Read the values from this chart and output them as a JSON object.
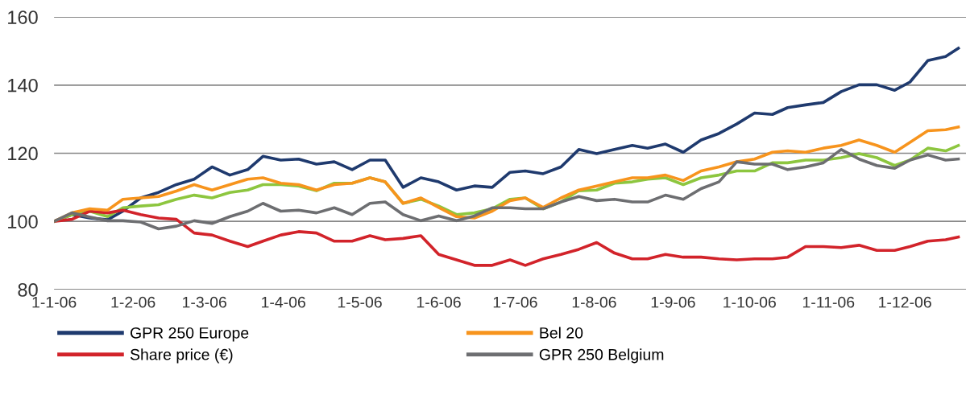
{
  "chart_data": {
    "type": "line",
    "x": [
      "2006-01-01",
      "2006-01-08",
      "2006-01-15",
      "2006-01-22",
      "2006-01-28",
      "2006-02-04",
      "2006-02-11",
      "2006-02-18",
      "2006-02-25",
      "2006-03-04",
      "2006-03-11",
      "2006-03-18",
      "2006-03-24",
      "2006-03-31",
      "2006-04-07",
      "2006-04-14",
      "2006-04-21",
      "2006-04-28",
      "2006-05-05",
      "2006-05-11",
      "2006-05-18",
      "2006-05-25",
      "2006-06-01",
      "2006-06-08",
      "2006-06-15",
      "2006-06-22",
      "2006-06-29",
      "2006-07-05",
      "2006-07-12",
      "2006-07-19",
      "2006-07-26",
      "2006-08-02",
      "2006-08-09",
      "2006-08-16",
      "2006-08-22",
      "2006-08-29",
      "2006-09-05",
      "2006-09-12",
      "2006-09-19",
      "2006-09-26",
      "2006-10-03",
      "2006-10-10",
      "2006-10-16",
      "2006-10-23",
      "2006-10-30",
      "2006-11-06",
      "2006-11-13",
      "2006-11-20",
      "2006-11-27",
      "2006-12-03",
      "2006-12-10",
      "2006-12-17",
      "2006-12-22"
    ],
    "series": [
      {
        "name": "GPR 250 Europe",
        "color": "#1f3a6e",
        "values": [
          100,
          102,
          101,
          100.5,
          103,
          106.9,
          108.5,
          110.8,
          112.4,
          116,
          113.6,
          115.2,
          119.1,
          118,
          118.3,
          116.8,
          117.5,
          115.2,
          118,
          118,
          110,
          112.8,
          111.6,
          109.2,
          110.4,
          110,
          114.4,
          114.8,
          114,
          116,
          121.1,
          119.9,
          121.1,
          122.3,
          121.5,
          122.7,
          120.3,
          123.9,
          125.8,
          128.6,
          131.8,
          131.4,
          133.4,
          134.2,
          134.9,
          138.1,
          140.1,
          140.1,
          138.5,
          140.9,
          147.2,
          148.4,
          150.8
        ]
      },
      {
        "name": null,
        "color": "#8dc63f",
        "values": [
          100,
          102,
          103,
          101.4,
          104,
          104.5,
          104.9,
          106.5,
          107.7,
          106.9,
          108.5,
          109.2,
          110.8,
          110.8,
          110.4,
          109,
          111.2,
          111.2,
          112.8,
          111.6,
          105.3,
          106.5,
          104.5,
          102,
          102.5,
          103.7,
          106.5,
          106.9,
          103.7,
          105.7,
          109,
          109.2,
          111.2,
          111.6,
          112.4,
          112.8,
          110.8,
          112.8,
          113.6,
          114.8,
          114.8,
          117.2,
          117.2,
          118,
          118,
          118.7,
          119.9,
          118.7,
          116.4,
          118,
          121.5,
          120.7,
          122.3
        ]
      },
      {
        "name": "Share price (€)",
        "color": "#d2232a",
        "values": [
          100,
          100.6,
          103,
          102.5,
          103.3,
          102,
          101,
          100.6,
          96.6,
          96,
          94.2,
          92.6,
          94.2,
          96,
          97,
          96.6,
          94.2,
          94.2,
          95.8,
          94.6,
          95,
          95.8,
          90.3,
          88.7,
          87.1,
          87.1,
          88.7,
          87.1,
          89,
          90.3,
          91.8,
          93.8,
          90.7,
          89,
          89,
          90.3,
          89.5,
          89.5,
          89,
          88.7,
          89,
          89,
          89.5,
          92.6,
          92.6,
          92.3,
          93,
          91.5,
          91.5,
          92.6,
          94.2,
          94.6,
          95.4
        ]
      },
      {
        "name": "Bel 20",
        "color": "#f7941d",
        "values": [
          100,
          102.5,
          103.7,
          103.3,
          106.5,
          106.9,
          107.3,
          108.9,
          110.8,
          109.2,
          110.8,
          112.4,
          112.8,
          111.2,
          110.8,
          109.2,
          110.8,
          111.2,
          112.8,
          111.6,
          105.3,
          106.9,
          104.1,
          101.4,
          101,
          103,
          106.1,
          106.9,
          104.1,
          106.9,
          109.2,
          110.4,
          111.6,
          112.8,
          112.8,
          113.6,
          112,
          114.8,
          116,
          117.5,
          118.3,
          120.3,
          120.7,
          120.3,
          121.5,
          122.3,
          123.9,
          122.3,
          120.3,
          123.2,
          126.6,
          126.9,
          127.7
        ]
      },
      {
        "name": "GPR 250 Belgium",
        "color": "#6d6e71",
        "values": [
          100,
          102.5,
          101.3,
          100.2,
          100.2,
          99.8,
          97.8,
          98.6,
          100.2,
          99.4,
          101.4,
          103,
          105.3,
          103,
          103.3,
          102.5,
          104,
          102,
          105.3,
          105.7,
          102,
          100.2,
          101.6,
          100.2,
          101.6,
          104,
          104,
          103.7,
          103.7,
          105.7,
          107.3,
          106.1,
          106.5,
          105.7,
          105.7,
          107.7,
          106.5,
          109.6,
          111.6,
          117.5,
          116.8,
          116.8,
          115.2,
          116,
          117.2,
          121.1,
          118.3,
          116.4,
          115.6,
          118,
          119.5,
          118,
          118.3
        ]
      }
    ],
    "xlim": [
      "2006-01-01",
      "2006-12-25"
    ],
    "xticks": [
      {
        "value": "2006-01-01",
        "label": "1-1-06"
      },
      {
        "value": "2006-02-01",
        "label": "1-2-06"
      },
      {
        "value": "2006-03-01",
        "label": "1-3-06"
      },
      {
        "value": "2006-04-01",
        "label": "1-4-06"
      },
      {
        "value": "2006-05-01",
        "label": "1-5-06"
      },
      {
        "value": "2006-06-01",
        "label": "1-6-06"
      },
      {
        "value": "2006-07-01",
        "label": "1-7-06"
      },
      {
        "value": "2006-08-01",
        "label": "1-8-06"
      },
      {
        "value": "2006-09-01",
        "label": "1-9-06"
      },
      {
        "value": "2006-10-01",
        "label": "1-10-06"
      },
      {
        "value": "2006-11-01",
        "label": "1-11-06"
      },
      {
        "value": "2006-12-01",
        "label": "1-12-06"
      }
    ],
    "ylim": [
      80,
      160
    ],
    "yticks": [
      80,
      100,
      120,
      140,
      160
    ],
    "grid": "y",
    "legend": "bottom",
    "marker": "none",
    "line_style": "solid"
  }
}
